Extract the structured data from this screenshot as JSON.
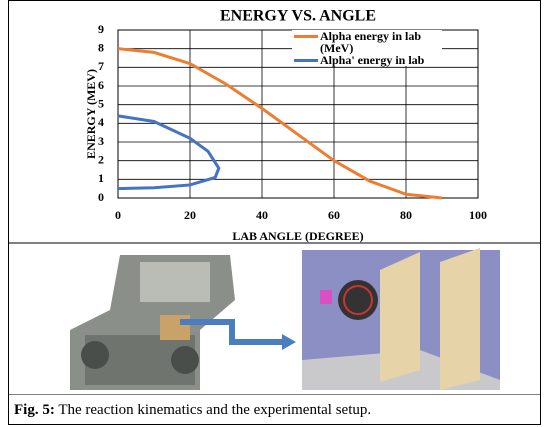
{
  "chart_data": {
    "type": "line",
    "title": "ENERGY VS. ANGLE",
    "xlabel": "LAB ANGLE (DEGREE)",
    "ylabel": "ENERGY (MEV)",
    "xlim": [
      0,
      100
    ],
    "xticks": [
      0,
      20,
      40,
      60,
      80,
      100
    ],
    "ylim": [
      0,
      9
    ],
    "yticks": [
      0,
      1,
      2,
      3,
      4,
      5,
      6,
      7,
      8,
      9
    ],
    "grid": true,
    "legend": "upper right",
    "series": [
      {
        "name": "Alpha energy in lab (MeV)",
        "color": "#ed7d31",
        "x": [
          0,
          10,
          20,
          30,
          40,
          50,
          60,
          70,
          80,
          90
        ],
        "values": [
          8,
          7.8,
          7.2,
          6.1,
          4.8,
          3.4,
          2.0,
          0.9,
          0.2,
          0
        ]
      },
      {
        "name": "Alpha' energy in lab",
        "color": "#4472c4",
        "x": [
          0,
          10,
          20,
          25,
          28,
          27,
          20,
          10,
          0
        ],
        "values": [
          4.4,
          4.1,
          3.2,
          2.5,
          1.6,
          1.1,
          0.7,
          0.55,
          0.5
        ]
      }
    ]
  },
  "caption": {
    "label": "Fig. 5:",
    "text": "The reaction kinematics and the experimental setup."
  }
}
